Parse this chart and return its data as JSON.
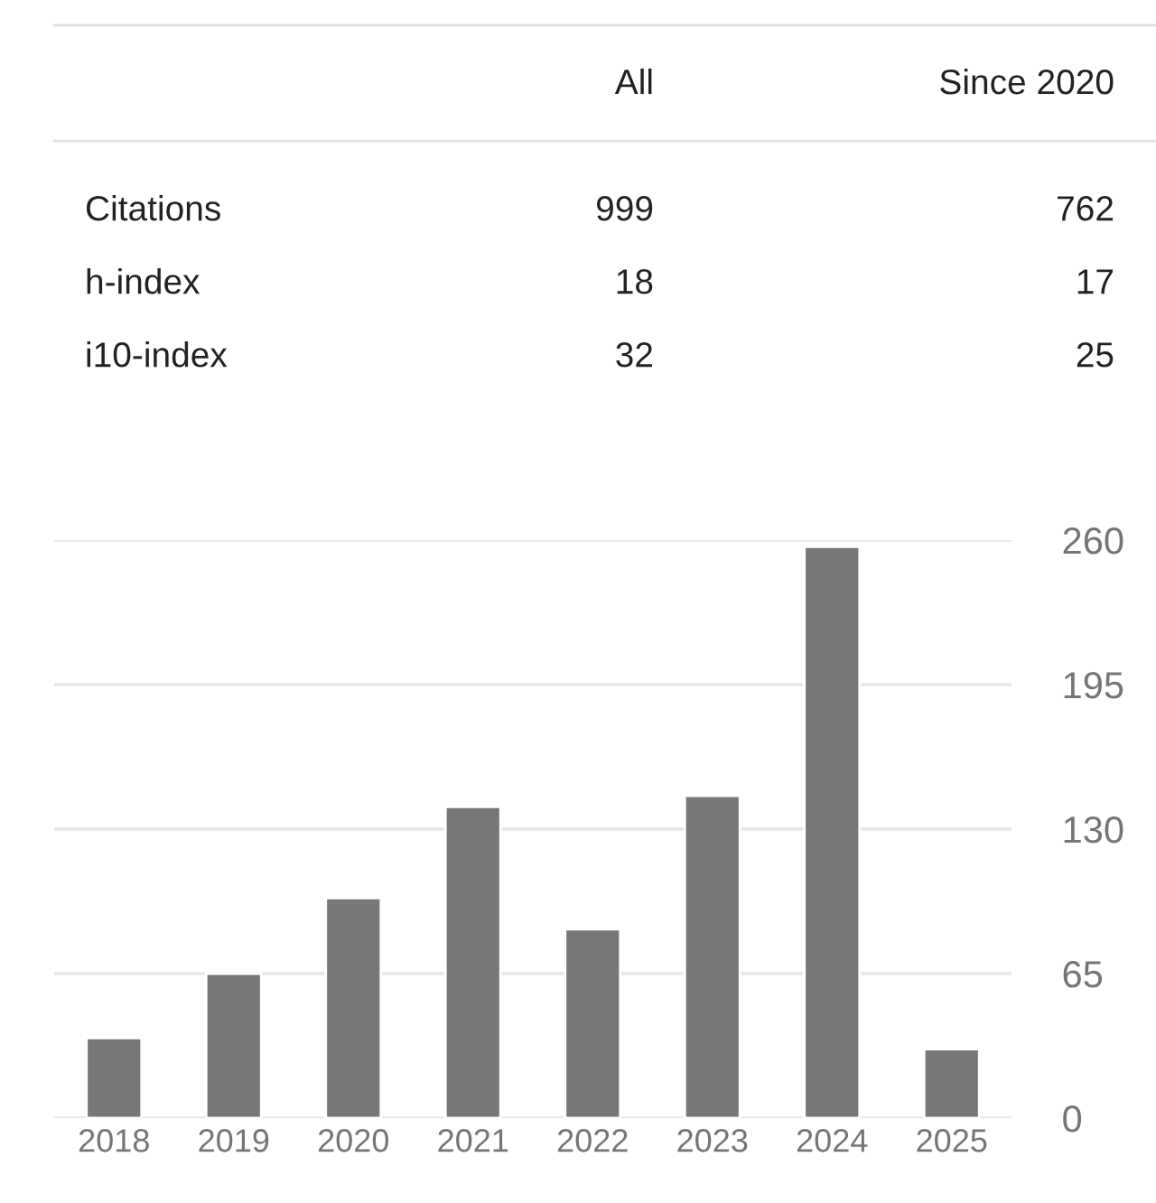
{
  "chart_data": [
    {
      "type": "other",
      "categories": [
        "All",
        "Since 2020"
      ],
      "y_categories": [
        "Citations",
        "h-index",
        "i10-index"
      ],
      "cell_labels": [
        [
          "999",
          "762"
        ],
        [
          "18",
          "17"
        ],
        [
          "32",
          "25"
        ]
      ]
    },
    {
      "type": "bar",
      "categories": [
        "2018",
        "2019",
        "2020",
        "2021",
        "2022",
        "2023",
        "2024",
        "2025"
      ],
      "values": [
        36,
        65,
        99,
        140,
        85,
        145,
        257,
        31
      ],
      "color": "#777777",
      "ylim": [
        0,
        260
      ],
      "yticks": [
        0,
        65,
        130,
        195,
        260
      ],
      "grid": "y"
    }
  ]
}
